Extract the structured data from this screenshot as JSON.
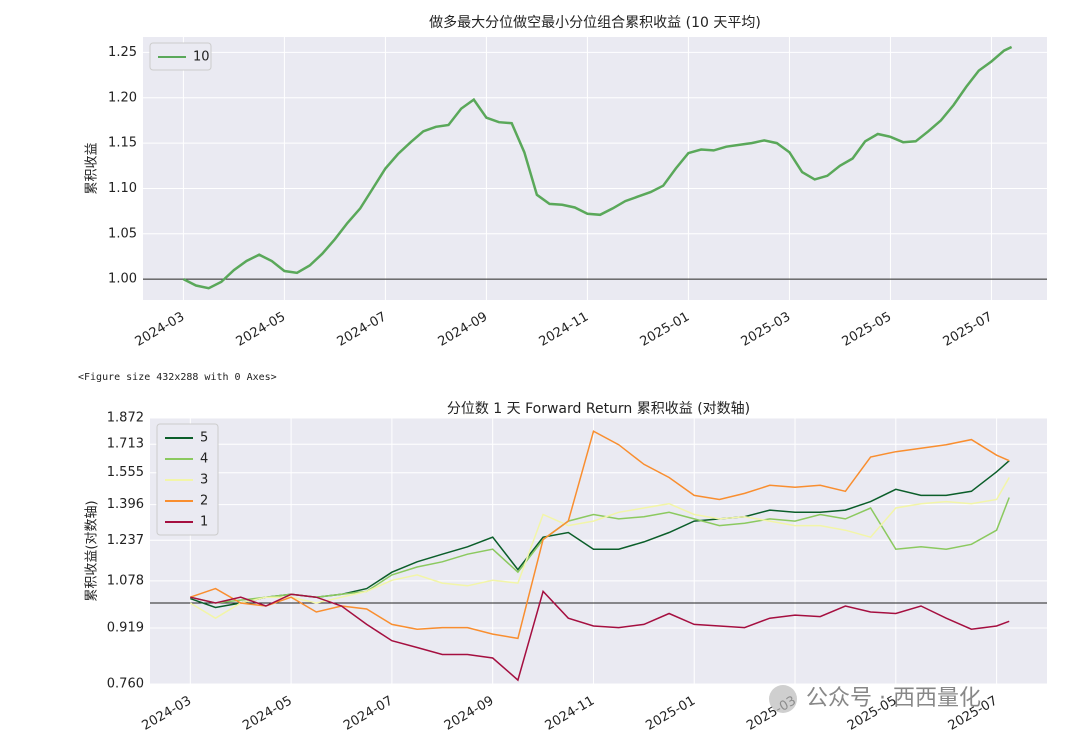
{
  "chart_data": [
    {
      "type": "line",
      "title": "做多最大分位做空最小分位组合累积收益 (10 天平均)",
      "y_label": "累积收益",
      "x": [
        0,
        0.25,
        0.5,
        0.75,
        1,
        1.25,
        1.5,
        1.75,
        2,
        2.25,
        2.5,
        2.75,
        3,
        3.25,
        3.5,
        3.75,
        4,
        4.25,
        4.5,
        4.75,
        5,
        5.25,
        5.5,
        5.75,
        6,
        6.25,
        6.5,
        6.75,
        7,
        7.25,
        7.5,
        7.75,
        8,
        8.25,
        8.5,
        8.75,
        9,
        9.25,
        9.5,
        9.75,
        10,
        10.25,
        10.5,
        10.75,
        11,
        11.25,
        11.5,
        11.75,
        12,
        12.25,
        12.5,
        12.75,
        13,
        13.25,
        13.5,
        13.75,
        14,
        14.25,
        14.5,
        14.75,
        15,
        15.25,
        15.5,
        15.75,
        16,
        16.25,
        16.4
      ],
      "series": [
        {
          "name": "10",
          "color": "#5aa85a",
          "values": [
            1.0,
            0.993,
            0.99,
            0.997,
            1.01,
            1.02,
            1.027,
            1.02,
            1.009,
            1.007,
            1.015,
            1.028,
            1.044,
            1.062,
            1.078,
            1.1,
            1.122,
            1.138,
            1.151,
            1.163,
            1.168,
            1.17,
            1.188,
            1.198,
            1.178,
            1.173,
            1.172,
            1.14,
            1.093,
            1.083,
            1.082,
            1.079,
            1.072,
            1.071,
            1.078,
            1.086,
            1.091,
            1.096,
            1.103,
            1.122,
            1.139,
            1.143,
            1.142,
            1.146,
            1.148,
            1.15,
            1.153,
            1.15,
            1.14,
            1.118,
            1.11,
            1.114,
            1.125,
            1.133,
            1.152,
            1.16,
            1.157,
            1.151,
            1.152,
            1.163,
            1.175,
            1.192,
            1.212,
            1.23,
            1.24,
            1.252,
            1.256
          ]
        }
      ],
      "xlim": [
        -0.8,
        17.1
      ],
      "xticks": [
        {
          "value": 0,
          "label": "2024-03"
        },
        {
          "value": 2,
          "label": "2024-05"
        },
        {
          "value": 4,
          "label": "2024-07"
        },
        {
          "value": 6,
          "label": "2024-09"
        },
        {
          "value": 8,
          "label": "2024-11"
        },
        {
          "value": 10,
          "label": "2025-01"
        },
        {
          "value": 12,
          "label": "2025-03"
        },
        {
          "value": 14,
          "label": "2025-05"
        },
        {
          "value": 16,
          "label": "2025-07"
        }
      ],
      "ylim": [
        0.977,
        1.267
      ],
      "yticks": [
        {
          "value": 1,
          "label": "1.00"
        },
        1.05,
        {
          "value": 1.1,
          "label": "1.10"
        },
        1.15,
        {
          "value": 1.2,
          "label": "1.20"
        },
        1.25
      ],
      "reference_line": 1,
      "grid": true,
      "legend": "upper left"
    },
    {
      "type": "line",
      "title": "分位数 1 天 Forward Return 累积收益 (对数轴)",
      "y_label": "累积收益(对数轴)",
      "x": [
        0,
        0.5,
        1,
        1.5,
        2,
        2.5,
        3,
        3.5,
        4,
        4.5,
        5,
        5.5,
        6,
        6.5,
        7,
        7.5,
        8,
        8.5,
        9,
        9.5,
        10,
        10.5,
        11,
        11.5,
        12,
        12.5,
        13,
        13.5,
        14,
        14.5,
        15,
        15.5,
        16,
        16.25
      ],
      "series": [
        {
          "name": "5",
          "color": "#0b5e2a",
          "values": [
            1.015,
            0.985,
            1.0,
            1.02,
            1.03,
            1.02,
            1.03,
            1.05,
            1.11,
            1.15,
            1.18,
            1.21,
            1.25,
            1.12,
            1.25,
            1.27,
            1.2,
            1.2,
            1.23,
            1.27,
            1.32,
            1.33,
            1.34,
            1.37,
            1.36,
            1.36,
            1.37,
            1.41,
            1.47,
            1.44,
            1.44,
            1.46,
            1.56,
            1.62
          ]
        },
        {
          "name": "4",
          "color": "#8bc95f",
          "values": [
            1.02,
            1.0,
            1.01,
            1.02,
            1.03,
            1.02,
            1.03,
            1.04,
            1.1,
            1.13,
            1.15,
            1.18,
            1.2,
            1.11,
            1.24,
            1.32,
            1.35,
            1.33,
            1.34,
            1.36,
            1.33,
            1.3,
            1.31,
            1.33,
            1.32,
            1.35,
            1.33,
            1.38,
            1.2,
            1.21,
            1.2,
            1.22,
            1.28,
            1.43
          ]
        },
        {
          "name": "3",
          "color": "#f2f5a8",
          "values": [
            1.0,
            0.95,
            1.0,
            1.02,
            1.02,
            1.0,
            1.02,
            1.04,
            1.08,
            1.1,
            1.07,
            1.06,
            1.08,
            1.07,
            1.35,
            1.3,
            1.32,
            1.36,
            1.38,
            1.4,
            1.35,
            1.33,
            1.34,
            1.32,
            1.3,
            1.3,
            1.28,
            1.25,
            1.38,
            1.4,
            1.41,
            1.4,
            1.42,
            1.53
          ]
        },
        {
          "name": "2",
          "color": "#f98e2f",
          "values": [
            1.02,
            1.05,
            1.0,
            0.99,
            1.02,
            0.97,
            0.99,
            0.98,
            0.93,
            0.915,
            0.92,
            0.92,
            0.9,
            0.887,
            1.24,
            1.32,
            1.79,
            1.71,
            1.6,
            1.53,
            1.44,
            1.42,
            1.45,
            1.49,
            1.48,
            1.49,
            1.46,
            1.64,
            1.67,
            1.69,
            1.71,
            1.74,
            1.65,
            1.62
          ]
        },
        {
          "name": "1",
          "color": "#a50f40",
          "values": [
            1.02,
            1.0,
            1.02,
            0.99,
            1.03,
            1.02,
            0.99,
            0.93,
            0.88,
            0.86,
            0.84,
            0.84,
            0.83,
            0.77,
            1.04,
            0.95,
            0.925,
            0.92,
            0.93,
            0.965,
            0.93,
            0.925,
            0.92,
            0.95,
            0.96,
            0.955,
            0.99,
            0.97,
            0.965,
            0.99,
            0.95,
            0.915,
            0.925,
            0.94
          ]
        }
      ],
      "xlim": [
        -0.8,
        17.0
      ],
      "xticks": [
        {
          "value": 0,
          "label": "2024-03"
        },
        {
          "value": 2,
          "label": "2024-05"
        },
        {
          "value": 4,
          "label": "2024-07"
        },
        {
          "value": 6,
          "label": "2024-09"
        },
        {
          "value": 8,
          "label": "2024-11"
        },
        {
          "value": 10,
          "label": "2025-01"
        },
        {
          "value": 12,
          "label": "2025-03"
        },
        {
          "value": 14,
          "label": "2025-05"
        },
        {
          "value": 16,
          "label": "2025-07"
        }
      ],
      "ylim": [
        0.76,
        1.872
      ],
      "log_y": true,
      "yticks": [
        {
          "value": 0.76,
          "label": "0.760"
        },
        0.919,
        1.078,
        1.237,
        1.396,
        1.555,
        1.713,
        1.872
      ],
      "reference_line": 1,
      "grid": true,
      "legend": "upper left"
    }
  ],
  "figure_note": "<Figure size 432x288 with 0 Axes>",
  "watermark": "公众号 · 西西量化"
}
